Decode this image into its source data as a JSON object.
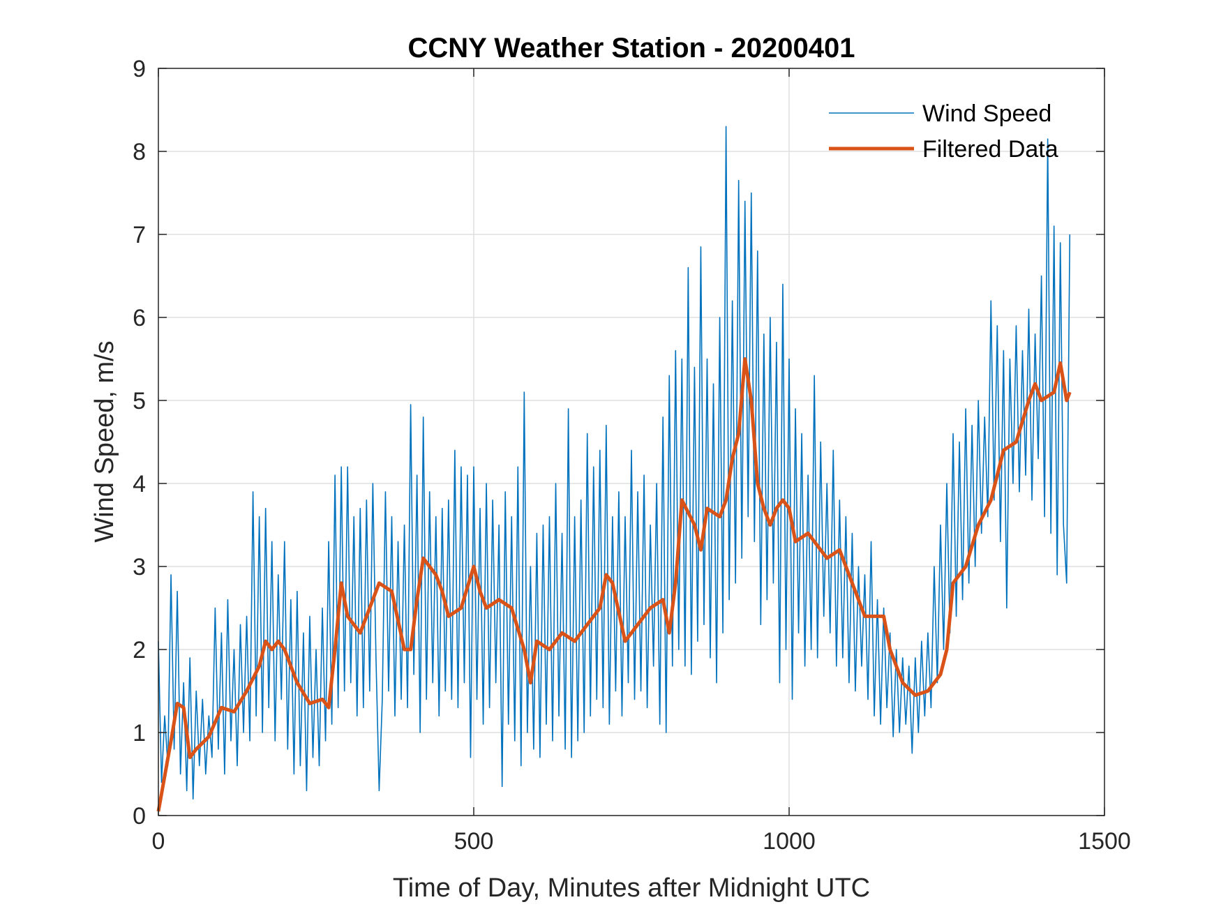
{
  "chart_data": {
    "type": "line",
    "title": "CCNY Weather Station - 20200401",
    "xlabel": "Time of Day, Minutes after Midnight UTC",
    "ylabel": "Wind Speed, m/s",
    "xlim": [
      0,
      1500
    ],
    "ylim": [
      0,
      9
    ],
    "xticks": [
      "0",
      "500",
      "1000",
      "1500"
    ],
    "yticks": [
      "0",
      "1",
      "2",
      "3",
      "4",
      "5",
      "6",
      "7",
      "8",
      "9"
    ],
    "grid": true,
    "legend_position": "top-right",
    "series": [
      {
        "name": "Wind Speed",
        "color": "#0072BD",
        "x_start": 0,
        "x_step": 5,
        "values": [
          2.1,
          0.4,
          1.2,
          0.6,
          2.9,
          0.8,
          2.7,
          0.5,
          1.6,
          0.3,
          1.9,
          0.2,
          1.5,
          0.6,
          1.4,
          0.5,
          1.2,
          0.7,
          2.5,
          0.8,
          2.2,
          0.5,
          2.6,
          0.9,
          2.0,
          0.6,
          2.3,
          1.0,
          2.4,
          0.9,
          3.9,
          1.2,
          3.6,
          1.0,
          3.7,
          1.3,
          3.3,
          0.9,
          2.9,
          1.4,
          3.3,
          0.8,
          2.6,
          0.5,
          2.7,
          0.6,
          2.2,
          0.3,
          2.4,
          0.7,
          2.0,
          0.6,
          2.5,
          0.9,
          3.3,
          1.1,
          4.1,
          1.3,
          4.2,
          1.5,
          4.2,
          1.6,
          3.6,
          1.2,
          3.7,
          1.3,
          3.8,
          1.5,
          4.0,
          1.9,
          0.3,
          1.4,
          3.9,
          1.5,
          3.6,
          1.2,
          3.3,
          1.4,
          3.5,
          1.3,
          4.95,
          1.7,
          4.1,
          1.0,
          4.8,
          1.4,
          3.9,
          1.6,
          3.6,
          1.2,
          3.7,
          1.5,
          3.8,
          1.4,
          4.4,
          1.3,
          4.2,
          1.6,
          4.1,
          0.7,
          4.2,
          1.4,
          3.7,
          1.1,
          4.0,
          1.3,
          3.8,
          1.6,
          3.5,
          0.35,
          3.9,
          1.1,
          3.6,
          0.9,
          4.2,
          0.6,
          5.1,
          1.0,
          3.0,
          0.8,
          3.4,
          0.7,
          3.5,
          1.1,
          3.6,
          0.9,
          4.0,
          1.2,
          3.4,
          0.8,
          4.9,
          0.7,
          3.6,
          0.9,
          3.8,
          1.0,
          4.6,
          1.2,
          4.2,
          1.4,
          4.4,
          1.3,
          4.7,
          1.1,
          3.6,
          1.5,
          3.9,
          1.2,
          3.6,
          1.6,
          4.4,
          1.4,
          3.9,
          1.5,
          4.1,
          1.3,
          3.5,
          1.8,
          4.0,
          1.1,
          4.8,
          1.0,
          5.3,
          1.8,
          5.6,
          2.0,
          5.5,
          1.8,
          6.6,
          1.7,
          5.4,
          2.1,
          6.85,
          2.3,
          5.5,
          1.9,
          5.2,
          1.6,
          6.0,
          2.2,
          8.3,
          2.6,
          6.2,
          2.8,
          7.65,
          3.1,
          7.4,
          3.6,
          7.5,
          3.3,
          6.8,
          2.3,
          5.8,
          2.6,
          6.0,
          2.8,
          5.7,
          1.6,
          6.4,
          2.0,
          5.5,
          1.4,
          4.9,
          2.2,
          4.6,
          1.8,
          4.1,
          2.0,
          5.3,
          1.9,
          4.5,
          2.4,
          4.0,
          2.2,
          4.4,
          1.8,
          3.8,
          1.9,
          3.6,
          1.6,
          3.4,
          1.5,
          3.0,
          1.8,
          2.9,
          1.4,
          3.3,
          1.2,
          2.6,
          1.1,
          2.5,
          1.3,
          2.2,
          0.95,
          2.0,
          1.0,
          1.9,
          1.1,
          1.8,
          0.75,
          1.9,
          1.0,
          2.1,
          1.2,
          2.2,
          1.3,
          3.0,
          1.6,
          3.5,
          2.0,
          4.0,
          2.2,
          4.6,
          2.4,
          4.5,
          2.6,
          4.9,
          2.8,
          4.7,
          3.0,
          5.0,
          3.4,
          4.8,
          3.6,
          6.2,
          3.8,
          5.9,
          3.3,
          5.6,
          2.5,
          5.5,
          4.0,
          5.9,
          3.9,
          5.6,
          4.1,
          6.1,
          3.8,
          5.8,
          4.3,
          6.5,
          3.6,
          8.15,
          3.4,
          7.1,
          2.9,
          6.9,
          3.5,
          2.8,
          7.0
        ]
      },
      {
        "name": "Filtered Data",
        "color": "#D95319",
        "x": [
          0,
          20,
          30,
          40,
          50,
          60,
          80,
          100,
          120,
          140,
          160,
          170,
          180,
          190,
          200,
          220,
          240,
          260,
          270,
          280,
          290,
          300,
          320,
          340,
          350,
          370,
          390,
          400,
          410,
          420,
          440,
          450,
          460,
          480,
          500,
          510,
          520,
          540,
          560,
          580,
          590,
          600,
          620,
          640,
          660,
          680,
          700,
          710,
          720,
          740,
          760,
          780,
          800,
          810,
          820,
          830,
          850,
          860,
          870,
          890,
          900,
          910,
          920,
          930,
          940,
          950,
          960,
          970,
          980,
          990,
          1000,
          1010,
          1030,
          1050,
          1060,
          1080,
          1100,
          1120,
          1140,
          1150,
          1160,
          1180,
          1200,
          1220,
          1240,
          1250,
          1260,
          1280,
          1300,
          1320,
          1340,
          1360,
          1380,
          1390,
          1400,
          1420,
          1430,
          1440,
          1445
        ],
        "values": [
          0.05,
          0.9,
          1.35,
          1.3,
          0.7,
          0.8,
          0.95,
          1.3,
          1.25,
          1.5,
          1.8,
          2.1,
          2.0,
          2.1,
          2.0,
          1.6,
          1.35,
          1.4,
          1.3,
          2.0,
          2.8,
          2.4,
          2.2,
          2.6,
          2.8,
          2.7,
          2.0,
          2.0,
          2.6,
          3.1,
          2.9,
          2.7,
          2.4,
          2.5,
          3.0,
          2.7,
          2.5,
          2.6,
          2.5,
          2.0,
          1.6,
          2.1,
          2.0,
          2.2,
          2.1,
          2.3,
          2.5,
          2.9,
          2.8,
          2.1,
          2.3,
          2.5,
          2.6,
          2.2,
          2.8,
          3.8,
          3.5,
          3.2,
          3.7,
          3.6,
          3.8,
          4.3,
          4.6,
          5.5,
          5.0,
          4.0,
          3.7,
          3.5,
          3.7,
          3.8,
          3.7,
          3.3,
          3.4,
          3.2,
          3.1,
          3.2,
          2.8,
          2.4,
          2.4,
          2.4,
          2.0,
          1.6,
          1.45,
          1.5,
          1.7,
          2.0,
          2.8,
          3.0,
          3.5,
          3.8,
          4.4,
          4.5,
          5.0,
          5.2,
          5.0,
          5.1,
          5.45,
          5.0,
          5.1
        ]
      }
    ]
  }
}
